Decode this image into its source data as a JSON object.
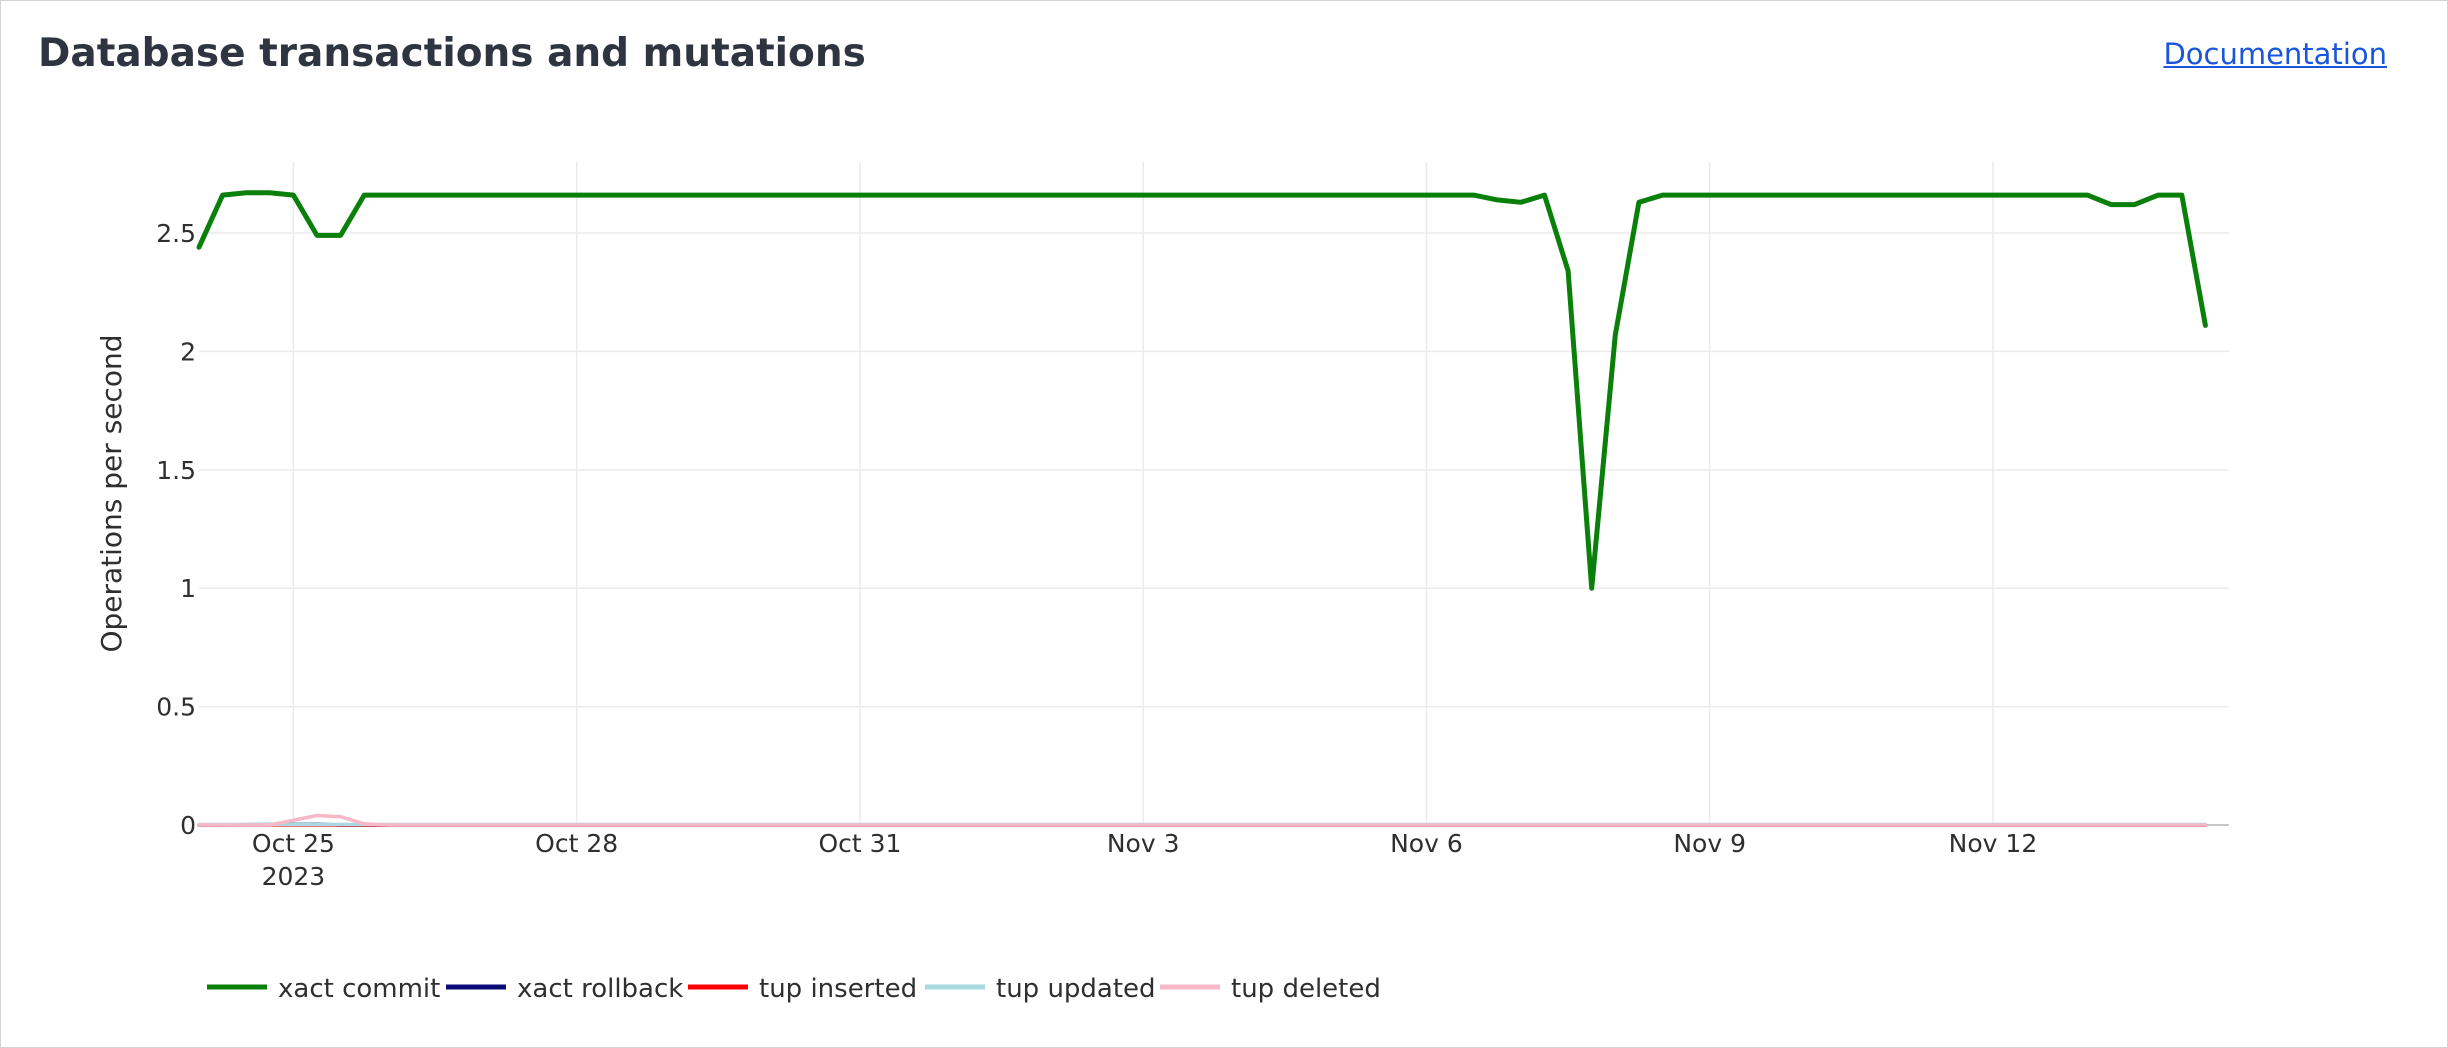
{
  "panel": {
    "title": "Database transactions and mutations",
    "doc_link": "Documentation"
  },
  "chart_data": {
    "type": "line",
    "ylabel": "Operations per second",
    "xlabel": "",
    "ylim": [
      0,
      2.8
    ],
    "y_ticks": [
      0,
      0.5,
      1,
      1.5,
      2,
      2.5
    ],
    "y_tick_labels": [
      "0",
      "0.5",
      "1",
      "1.5",
      "2",
      "2.5"
    ],
    "x_range": [
      "2023-10-24 00:00",
      "2023-11-14 12:00"
    ],
    "x_ticks": [
      {
        "date": "2023-10-25",
        "label": "Oct 25",
        "sublabel": "2023"
      },
      {
        "date": "2023-10-28",
        "label": "Oct 28",
        "sublabel": ""
      },
      {
        "date": "2023-10-31",
        "label": "Oct 31",
        "sublabel": ""
      },
      {
        "date": "2023-11-03",
        "label": "Nov 3",
        "sublabel": ""
      },
      {
        "date": "2023-11-06",
        "label": "Nov 6",
        "sublabel": ""
      },
      {
        "date": "2023-11-09",
        "label": "Nov 9",
        "sublabel": ""
      },
      {
        "date": "2023-11-12",
        "label": "Nov 12",
        "sublabel": ""
      }
    ],
    "grid": true,
    "legend_position": "bottom-left",
    "series": [
      {
        "name": "xact commit",
        "color": "#0a7f0a",
        "points": [
          [
            "2023-10-24 00:00",
            2.44
          ],
          [
            "2023-10-24 06:00",
            2.66
          ],
          [
            "2023-10-24 12:00",
            2.67
          ],
          [
            "2023-10-24 18:00",
            2.67
          ],
          [
            "2023-10-25 00:00",
            2.66
          ],
          [
            "2023-10-25 06:00",
            2.49
          ],
          [
            "2023-10-25 12:00",
            2.49
          ],
          [
            "2023-10-25 18:00",
            2.66
          ],
          [
            "2023-10-27 00:00",
            2.66
          ],
          [
            "2023-10-29 00:00",
            2.66
          ],
          [
            "2023-10-31 00:00",
            2.66
          ],
          [
            "2023-11-01 00:00",
            2.66
          ],
          [
            "2023-11-03 00:00",
            2.66
          ],
          [
            "2023-11-05 00:00",
            2.66
          ],
          [
            "2023-11-06 12:00",
            2.66
          ],
          [
            "2023-11-06 18:00",
            2.64
          ],
          [
            "2023-11-07 00:00",
            2.63
          ],
          [
            "2023-11-07 06:00",
            2.66
          ],
          [
            "2023-11-07 12:00",
            2.34
          ],
          [
            "2023-11-07 18:00",
            1.0
          ],
          [
            "2023-11-08 00:00",
            2.07
          ],
          [
            "2023-11-08 06:00",
            2.63
          ],
          [
            "2023-11-08 12:00",
            2.66
          ],
          [
            "2023-11-10 00:00",
            2.66
          ],
          [
            "2023-11-12 00:00",
            2.66
          ],
          [
            "2023-11-13 00:00",
            2.66
          ],
          [
            "2023-11-13 06:00",
            2.62
          ],
          [
            "2023-11-13 12:00",
            2.62
          ],
          [
            "2023-11-13 18:00",
            2.66
          ],
          [
            "2023-11-14 00:00",
            2.66
          ],
          [
            "2023-11-14 06:00",
            2.11
          ]
        ]
      },
      {
        "name": "xact rollback",
        "color": "#0b0b7a",
        "points": [
          [
            "2023-10-24 00:00",
            0
          ],
          [
            "2023-10-25 06:00",
            0.003
          ],
          [
            "2023-10-25 12:00",
            0
          ],
          [
            "2023-11-14 06:00",
            0
          ]
        ]
      },
      {
        "name": "tup inserted",
        "color": "#ff0000",
        "points": [
          [
            "2023-10-24 00:00",
            0
          ],
          [
            "2023-11-14 06:00",
            0
          ]
        ]
      },
      {
        "name": "tup updated",
        "color": "#a8d8e0",
        "points": [
          [
            "2023-10-24 00:00",
            0.002
          ],
          [
            "2023-11-14 06:00",
            0.002
          ]
        ]
      },
      {
        "name": "tup deleted",
        "color": "#f7b8c8",
        "points": [
          [
            "2023-10-24 00:00",
            0
          ],
          [
            "2023-10-24 18:00",
            0
          ],
          [
            "2023-10-25 06:00",
            0.04
          ],
          [
            "2023-10-25 12:00",
            0.035
          ],
          [
            "2023-10-25 18:00",
            0.005
          ],
          [
            "2023-10-26 00:00",
            0
          ],
          [
            "2023-11-14 06:00",
            0
          ]
        ]
      }
    ]
  }
}
